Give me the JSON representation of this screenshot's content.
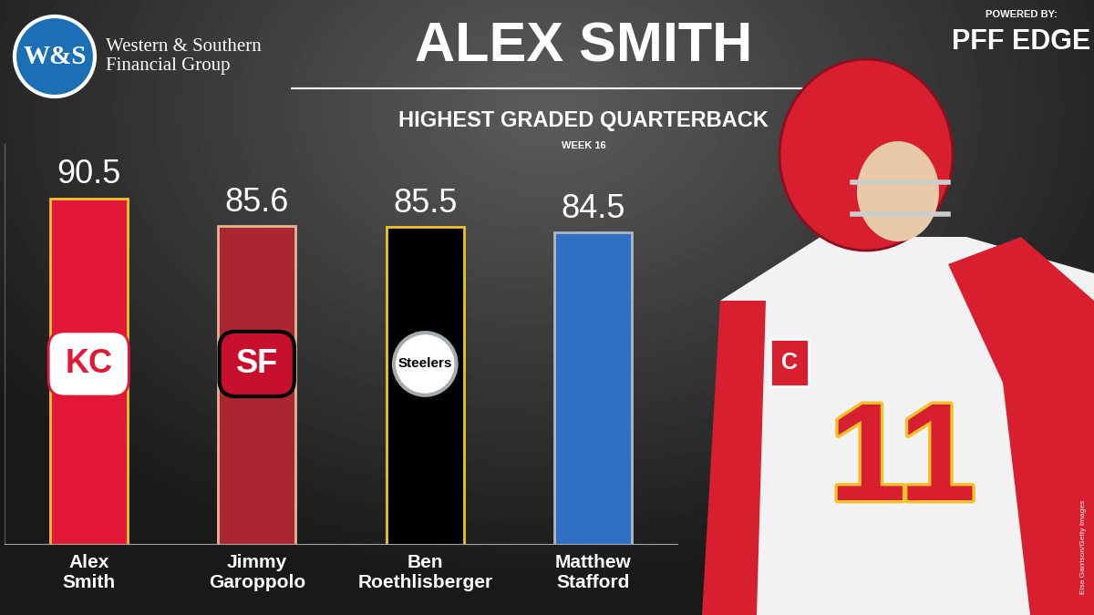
{
  "branding": {
    "sponsor_logo": "W&S",
    "sponsor": "Western & Southern\nFinancial Group",
    "powered_by": "POWERED BY:",
    "brand": "PFF EDGE",
    "photo_credit": "Elsa Garrison/Getty Images"
  },
  "photo": {
    "jersey_number": "11",
    "captain_patch": "C"
  },
  "chart_data": {
    "type": "bar",
    "title": "ALEX SMITH",
    "subtitle": "HIGHEST GRADED QUARTERBACK",
    "annotations": [
      "WEEK 16"
    ],
    "categories": [
      "Alex\nSmith",
      "Jimmy\nGaroppolo",
      "Ben\nRoethlisberger",
      "Matthew\nStafford"
    ],
    "values": [
      90.5,
      85.6,
      85.5,
      84.5
    ],
    "colors": [
      "#e31837",
      "#aa2630",
      "#000000",
      "#2f6fc4"
    ],
    "logo_texts": [
      "KC",
      "SF",
      "Steelers",
      null
    ],
    "ylim": [
      30,
      100
    ],
    "yticks": [],
    "grid": false,
    "data_labels": true,
    "tick_labels": "x"
  }
}
